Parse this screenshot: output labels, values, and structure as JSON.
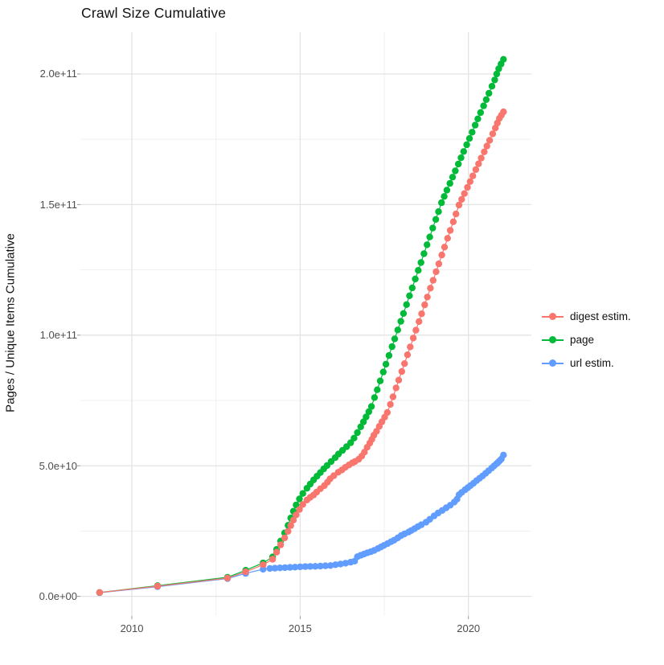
{
  "title": "Crawl Size Cumulative",
  "chart_data": {
    "type": "scatter",
    "title": "Crawl Size Cumulative",
    "xlabel": "",
    "ylabel": "Pages / Unique Items Cumulative",
    "x_ticks": [
      {
        "value": 2010,
        "label": "2010"
      },
      {
        "value": 2015,
        "label": "2015"
      },
      {
        "value": 2020,
        "label": "2020"
      }
    ],
    "y_ticks": [
      {
        "value": 0,
        "label": "0.0e+00"
      },
      {
        "value": 50000000000.0,
        "label": "5.0e+10"
      },
      {
        "value": 100000000000.0,
        "label": "1.0e+11"
      },
      {
        "value": 150000000000.0,
        "label": "1.5e+11"
      },
      {
        "value": 200000000000.0,
        "label": "2.0e+11"
      }
    ],
    "xlim": [
      2008.47,
      2021.87
    ],
    "ylim": [
      -7500000000.0,
      216000000000.0
    ],
    "grid": {
      "on": true,
      "x_minor": [
        2012.5,
        2017.5
      ],
      "y_minor": [
        25000000000.0,
        75000000000.0,
        125000000000.0,
        175000000000.0
      ],
      "major_color": "#e3e3e3",
      "minor_color": "#efefef"
    },
    "legend": {
      "position": "right",
      "items": [
        {
          "label": "digest estim.",
          "color": "#f8766d"
        },
        {
          "label": "page",
          "color": "#00ba38"
        },
        {
          "label": "url estim.",
          "color": "#619cff"
        }
      ]
    },
    "series": [
      {
        "name": "digest estim.",
        "color": "#f8766d",
        "points": [
          [
            2009.04,
            1500000000.0
          ],
          [
            2010.76,
            3900000000.0
          ],
          [
            2012.84,
            7000000000.0
          ],
          [
            2013.38,
            9400000000.0
          ],
          [
            2013.9,
            12100000000.0
          ],
          [
            2014.18,
            14200000000.0
          ],
          [
            2014.3,
            16900000000.0
          ],
          [
            2014.42,
            19700000000.0
          ],
          [
            2014.54,
            22400000000.0
          ],
          [
            2014.64,
            24900000000.0
          ],
          [
            2014.72,
            27100000000.0
          ],
          [
            2014.8,
            29200000000.0
          ],
          [
            2014.88,
            31200000000.0
          ],
          [
            2014.98,
            33300000000.0
          ],
          [
            2015.08,
            35200000000.0
          ],
          [
            2015.2,
            36900000000.0
          ],
          [
            2015.3,
            37900000000.0
          ],
          [
            2015.4,
            38800000000.0
          ],
          [
            2015.49,
            39900000000.0
          ],
          [
            2015.6,
            41200000000.0
          ],
          [
            2015.72,
            42400000000.0
          ],
          [
            2015.81,
            43700000000.0
          ],
          [
            2015.89,
            45000000000.0
          ],
          [
            2016.0,
            46200000000.0
          ],
          [
            2016.13,
            47500000000.0
          ],
          [
            2016.24,
            48400000000.0
          ],
          [
            2016.34,
            49400000000.0
          ],
          [
            2016.45,
            50300000000.0
          ],
          [
            2016.55,
            51100000000.0
          ],
          [
            2016.63,
            51600000000.0
          ],
          [
            2016.74,
            52500000000.0
          ],
          [
            2016.83,
            53700000000.0
          ],
          [
            2016.91,
            55200000000.0
          ],
          [
            2016.99,
            57100000000.0
          ],
          [
            2017.07,
            58700000000.0
          ],
          [
            2017.13,
            60100000000.0
          ],
          [
            2017.19,
            61700000000.0
          ],
          [
            2017.27,
            63200000000.0
          ],
          [
            2017.35,
            65100000000.0
          ],
          [
            2017.43,
            66800000000.0
          ],
          [
            2017.51,
            68600000000.0
          ],
          [
            2017.59,
            70400000000.0
          ],
          [
            2017.68,
            73500000000.0
          ],
          [
            2017.76,
            76400000000.0
          ],
          [
            2017.85,
            79800000000.0
          ],
          [
            2017.93,
            82800000000.0
          ],
          [
            2018.02,
            86100000000.0
          ],
          [
            2018.1,
            89100000000.0
          ],
          [
            2018.19,
            92500000000.0
          ],
          [
            2018.27,
            95500000000.0
          ],
          [
            2018.36,
            98900000000.0
          ],
          [
            2018.44,
            101900000000.0
          ],
          [
            2018.53,
            105200000000.0
          ],
          [
            2018.61,
            108200000000.0
          ],
          [
            2018.7,
            111600000000.0
          ],
          [
            2018.78,
            114600000000.0
          ],
          [
            2018.87,
            118000000000.0
          ],
          [
            2018.95,
            121000000000.0
          ],
          [
            2019.04,
            124300000000.0
          ],
          [
            2019.12,
            127300000000.0
          ],
          [
            2019.21,
            130700000000.0
          ],
          [
            2019.29,
            133700000000.0
          ],
          [
            2019.38,
            137100000000.0
          ],
          [
            2019.46,
            140100000000.0
          ],
          [
            2019.55,
            143400000000.0
          ],
          [
            2019.63,
            146400000000.0
          ],
          [
            2019.72,
            149800000000.0
          ],
          [
            2019.8,
            152000000000.0
          ],
          [
            2019.88,
            154200000000.0
          ],
          [
            2019.97,
            156600000000.0
          ],
          [
            2020.05,
            158800000000.0
          ],
          [
            2020.13,
            161000000000.0
          ],
          [
            2020.22,
            163400000000.0
          ],
          [
            2020.3,
            165600000000.0
          ],
          [
            2020.38,
            167800000000.0
          ],
          [
            2020.47,
            170200000000.0
          ],
          [
            2020.55,
            172400000000.0
          ],
          [
            2020.63,
            174600000000.0
          ],
          [
            2020.72,
            177100000000.0
          ],
          [
            2020.8,
            179300000000.0
          ],
          [
            2020.86,
            181200000000.0
          ],
          [
            2020.92,
            183000000000.0
          ],
          [
            2020.98,
            184200000000.0
          ],
          [
            2021.04,
            185500000000.0
          ]
        ]
      },
      {
        "name": "page",
        "color": "#00ba38",
        "points": [
          [
            2009.04,
            1500000000.0
          ],
          [
            2010.76,
            4100000000.0
          ],
          [
            2012.84,
            7300000000.0
          ],
          [
            2013.38,
            10000000000.0
          ],
          [
            2013.9,
            12800000000.0
          ],
          [
            2014.18,
            15100000000.0
          ],
          [
            2014.3,
            18000000000.0
          ],
          [
            2014.42,
            21200000000.0
          ],
          [
            2014.54,
            24300000000.0
          ],
          [
            2014.64,
            27200000000.0
          ],
          [
            2014.72,
            30000000000.0
          ],
          [
            2014.8,
            32600000000.0
          ],
          [
            2014.88,
            35000000000.0
          ],
          [
            2014.98,
            37300000000.0
          ],
          [
            2015.08,
            39400000000.0
          ],
          [
            2015.2,
            41400000000.0
          ],
          [
            2015.3,
            43000000000.0
          ],
          [
            2015.4,
            44600000000.0
          ],
          [
            2015.5,
            46000000000.0
          ],
          [
            2015.6,
            47400000000.0
          ],
          [
            2015.7,
            48800000000.0
          ],
          [
            2015.8,
            50100000000.0
          ],
          [
            2015.92,
            51600000000.0
          ],
          [
            2016.04,
            53100000000.0
          ],
          [
            2016.14,
            54500000000.0
          ],
          [
            2016.26,
            55900000000.0
          ],
          [
            2016.38,
            57300000000.0
          ],
          [
            2016.5,
            58800000000.0
          ],
          [
            2016.6,
            60600000000.0
          ],
          [
            2016.7,
            62700000000.0
          ],
          [
            2016.8,
            64900000000.0
          ],
          [
            2016.88,
            66800000000.0
          ],
          [
            2016.96,
            68700000000.0
          ],
          [
            2017.04,
            70700000000.0
          ],
          [
            2017.12,
            72700000000.0
          ],
          [
            2017.21,
            76100000000.0
          ],
          [
            2017.29,
            79100000000.0
          ],
          [
            2017.38,
            82500000000.0
          ],
          [
            2017.47,
            85900000000.0
          ],
          [
            2017.55,
            88900000000.0
          ],
          [
            2017.64,
            92200000000.0
          ],
          [
            2017.73,
            95600000000.0
          ],
          [
            2017.81,
            98600000000.0
          ],
          [
            2017.9,
            102000000000.0
          ],
          [
            2017.99,
            105300000000.0
          ],
          [
            2018.07,
            108300000000.0
          ],
          [
            2018.16,
            111700000000.0
          ],
          [
            2018.25,
            115100000000.0
          ],
          [
            2018.33,
            118100000000.0
          ],
          [
            2018.42,
            121500000000.0
          ],
          [
            2018.51,
            124800000000.0
          ],
          [
            2018.59,
            127800000000.0
          ],
          [
            2018.68,
            131200000000.0
          ],
          [
            2018.77,
            134600000000.0
          ],
          [
            2018.85,
            137600000000.0
          ],
          [
            2018.94,
            141000000000.0
          ],
          [
            2019.03,
            144300000000.0
          ],
          [
            2019.11,
            147300000000.0
          ],
          [
            2019.2,
            150700000000.0
          ],
          [
            2019.28,
            153100000000.0
          ],
          [
            2019.36,
            155500000000.0
          ],
          [
            2019.45,
            158100000000.0
          ],
          [
            2019.53,
            160500000000.0
          ],
          [
            2019.61,
            162900000000.0
          ],
          [
            2019.7,
            165500000000.0
          ],
          [
            2019.78,
            167900000000.0
          ],
          [
            2019.86,
            170300000000.0
          ],
          [
            2019.95,
            172900000000.0
          ],
          [
            2020.03,
            175300000000.0
          ],
          [
            2020.11,
            177700000000.0
          ],
          [
            2020.2,
            180400000000.0
          ],
          [
            2020.28,
            182800000000.0
          ],
          [
            2020.36,
            185200000000.0
          ],
          [
            2020.45,
            187800000000.0
          ],
          [
            2020.53,
            190200000000.0
          ],
          [
            2020.61,
            192600000000.0
          ],
          [
            2020.7,
            195300000000.0
          ],
          [
            2020.78,
            197700000000.0
          ],
          [
            2020.84,
            200000000000.0
          ],
          [
            2020.9,
            202000000000.0
          ],
          [
            2020.97,
            203800000000.0
          ],
          [
            2021.04,
            205600000000.0
          ]
        ]
      },
      {
        "name": "url estim.",
        "color": "#619cff",
        "points": [
          [
            2009.04,
            1400000000.0
          ],
          [
            2010.76,
            3700000000.0
          ],
          [
            2012.84,
            6800000000.0
          ],
          [
            2013.38,
            8800000000.0
          ],
          [
            2013.9,
            10400000000.0
          ],
          [
            2014.1,
            10700000000.0
          ],
          [
            2014.25,
            10800000000.0
          ],
          [
            2014.4,
            10900000000.0
          ],
          [
            2014.55,
            11000000000.0
          ],
          [
            2014.7,
            11100000000.0
          ],
          [
            2014.85,
            11200000000.0
          ],
          [
            2015.0,
            11300000000.0
          ],
          [
            2015.15,
            11400000000.0
          ],
          [
            2015.3,
            11450000000.0
          ],
          [
            2015.45,
            11500000000.0
          ],
          [
            2015.6,
            11600000000.0
          ],
          [
            2015.75,
            11700000000.0
          ],
          [
            2015.9,
            11800000000.0
          ],
          [
            2016.05,
            12100000000.0
          ],
          [
            2016.2,
            12400000000.0
          ],
          [
            2016.35,
            12700000000.0
          ],
          [
            2016.5,
            13100000000.0
          ],
          [
            2016.62,
            13500000000.0
          ],
          [
            2016.7,
            15200000000.0
          ],
          [
            2016.8,
            15700000000.0
          ],
          [
            2016.9,
            16200000000.0
          ],
          [
            2017.0,
            16700000000.0
          ],
          [
            2017.1,
            17100000000.0
          ],
          [
            2017.2,
            17600000000.0
          ],
          [
            2017.31,
            18300000000.0
          ],
          [
            2017.4,
            18900000000.0
          ],
          [
            2017.49,
            19500000000.0
          ],
          [
            2017.6,
            20200000000.0
          ],
          [
            2017.7,
            20900000000.0
          ],
          [
            2017.79,
            21500000000.0
          ],
          [
            2017.9,
            22400000000.0
          ],
          [
            2018.0,
            23300000000.0
          ],
          [
            2018.1,
            23900000000.0
          ],
          [
            2018.22,
            24600000000.0
          ],
          [
            2018.3,
            25200000000.0
          ],
          [
            2018.4,
            25900000000.0
          ],
          [
            2018.5,
            26700000000.0
          ],
          [
            2018.6,
            27400000000.0
          ],
          [
            2018.74,
            28400000000.0
          ],
          [
            2018.85,
            29500000000.0
          ],
          [
            2018.98,
            30800000000.0
          ],
          [
            2019.1,
            31900000000.0
          ],
          [
            2019.22,
            32900000000.0
          ],
          [
            2019.34,
            33900000000.0
          ],
          [
            2019.46,
            34900000000.0
          ],
          [
            2019.58,
            36100000000.0
          ],
          [
            2019.66,
            37200000000.0
          ],
          [
            2019.72,
            38900000000.0
          ],
          [
            2019.8,
            39800000000.0
          ],
          [
            2019.9,
            40800000000.0
          ],
          [
            2019.98,
            41600000000.0
          ],
          [
            2020.06,
            42400000000.0
          ],
          [
            2020.15,
            43300000000.0
          ],
          [
            2020.24,
            44300000000.0
          ],
          [
            2020.33,
            45200000000.0
          ],
          [
            2020.42,
            46100000000.0
          ],
          [
            2020.51,
            47100000000.0
          ],
          [
            2020.6,
            48100000000.0
          ],
          [
            2020.69,
            49100000000.0
          ],
          [
            2020.76,
            49900000000.0
          ],
          [
            2020.83,
            50700000000.0
          ],
          [
            2020.88,
            51300000000.0
          ],
          [
            2020.93,
            51900000000.0
          ],
          [
            2020.98,
            52600000000.0
          ],
          [
            2021.04,
            54100000000.0
          ]
        ]
      }
    ]
  }
}
